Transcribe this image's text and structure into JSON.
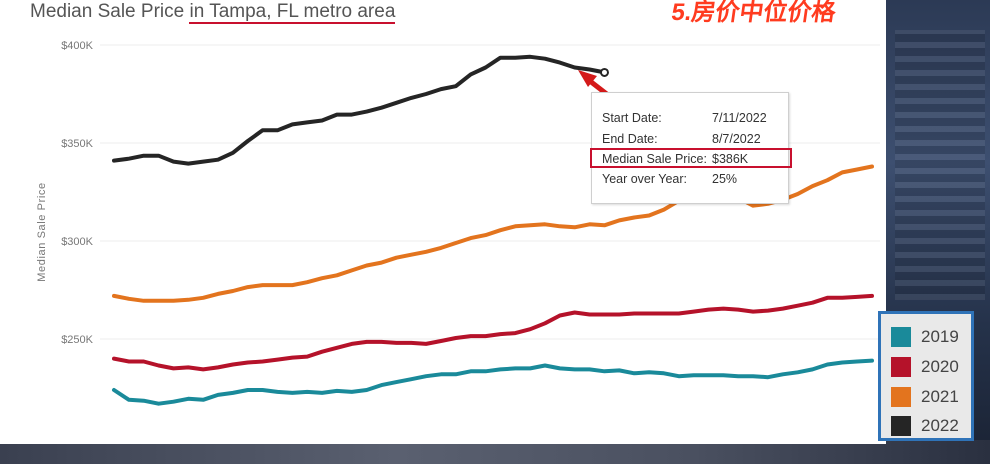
{
  "title": {
    "prefix": "Median Sale Price ",
    "highlight": "in Tampa, FL metro area"
  },
  "overlay_caption": "5.房价中位价格",
  "colors": {
    "2019": "#1a8a9a",
    "2020": "#b5122a",
    "2021": "#e3741e",
    "2022": "#252525",
    "highlight": "#c8102e",
    "legend_border": "#2f73b8"
  },
  "tooltip": {
    "rows": [
      {
        "label": "Start Date:",
        "value": "7/11/2022"
      },
      {
        "label": "End Date:",
        "value": "8/7/2022"
      },
      {
        "label": "Median Sale Price:",
        "value": "$386K"
      },
      {
        "label": "Year over Year:",
        "value": "25%"
      }
    ]
  },
  "legend": {
    "items": [
      {
        "key": "2019",
        "label": "2019",
        "color": "#1a8a9a"
      },
      {
        "key": "2020",
        "label": "2020",
        "color": "#b5122a"
      },
      {
        "key": "2021",
        "label": "2021",
        "color": "#e3741e"
      },
      {
        "key": "2022",
        "label": "2022",
        "color": "#252525"
      }
    ]
  },
  "chart_data": {
    "type": "line",
    "title": "Median Sale Price in Tampa, FL metro area",
    "xlabel": "",
    "ylabel": "Median Sale Price",
    "yticks": [
      {
        "value": 250000,
        "label": "$250K"
      },
      {
        "value": 300000,
        "label": "$300K"
      },
      {
        "value": 350000,
        "label": "$350K"
      },
      {
        "value": 400000,
        "label": "$400K"
      }
    ],
    "ylim": [
      212000,
      405000
    ],
    "x_points": 52,
    "grid": true,
    "legend": "bottom-right",
    "series": [
      {
        "name": "2019",
        "color": "#1a8a9a",
        "values": [
          224000,
          219000,
          218500,
          217000,
          218000,
          219500,
          219000,
          221500,
          222500,
          224000,
          224000,
          223000,
          222500,
          223000,
          222500,
          223500,
          223000,
          224000,
          226500,
          228000,
          229500,
          231000,
          232000,
          232000,
          233500,
          233500,
          234500,
          235000,
          235000,
          236500,
          235000,
          234500,
          234500,
          233500,
          234000,
          232500,
          233000,
          232500,
          231000,
          231500,
          231500,
          231500,
          231000,
          231000,
          230500,
          232000,
          233000,
          234500,
          237000,
          238000,
          238500,
          239000
        ]
      },
      {
        "name": "2020",
        "color": "#b5122a",
        "values": [
          240000,
          238500,
          238500,
          236500,
          235000,
          235500,
          234500,
          235500,
          237000,
          238000,
          238500,
          239500,
          240500,
          241000,
          243500,
          245500,
          247500,
          248500,
          248500,
          248000,
          248000,
          247500,
          249000,
          250500,
          251500,
          251500,
          252500,
          253000,
          255000,
          258000,
          262000,
          263500,
          262500,
          262500,
          262500,
          263000,
          263000,
          263000,
          263000,
          264000,
          265000,
          265500,
          265000,
          264000,
          264500,
          265500,
          267000,
          268500,
          271000,
          271000,
          271500,
          272000
        ]
      },
      {
        "name": "2021",
        "color": "#e3741e",
        "values": [
          272000,
          270500,
          269500,
          269500,
          269500,
          270000,
          271000,
          273000,
          274500,
          276500,
          277500,
          277500,
          277500,
          279000,
          281000,
          282500,
          285000,
          287500,
          289000,
          291500,
          293000,
          294500,
          296500,
          299000,
          301500,
          303000,
          305500,
          307500,
          308000,
          308500,
          307500,
          307000,
          308500,
          308000,
          310500,
          312000,
          313000,
          316000,
          320500,
          322000,
          324000,
          325500,
          322000,
          318000,
          319000,
          321000,
          324000,
          328000,
          331000,
          335000,
          336500,
          338000
        ]
      },
      {
        "name": "2022",
        "color": "#252525",
        "values": [
          341000,
          342000,
          343500,
          343500,
          340500,
          339500,
          340500,
          341500,
          345000,
          351000,
          356500,
          356500,
          359500,
          360500,
          361500,
          364500,
          364500,
          366000,
          368000,
          370500,
          373000,
          375000,
          377500,
          379000,
          385000,
          388500,
          393500,
          393500,
          394000,
          393000,
          391000,
          388500,
          387500,
          386000
        ]
      }
    ]
  }
}
